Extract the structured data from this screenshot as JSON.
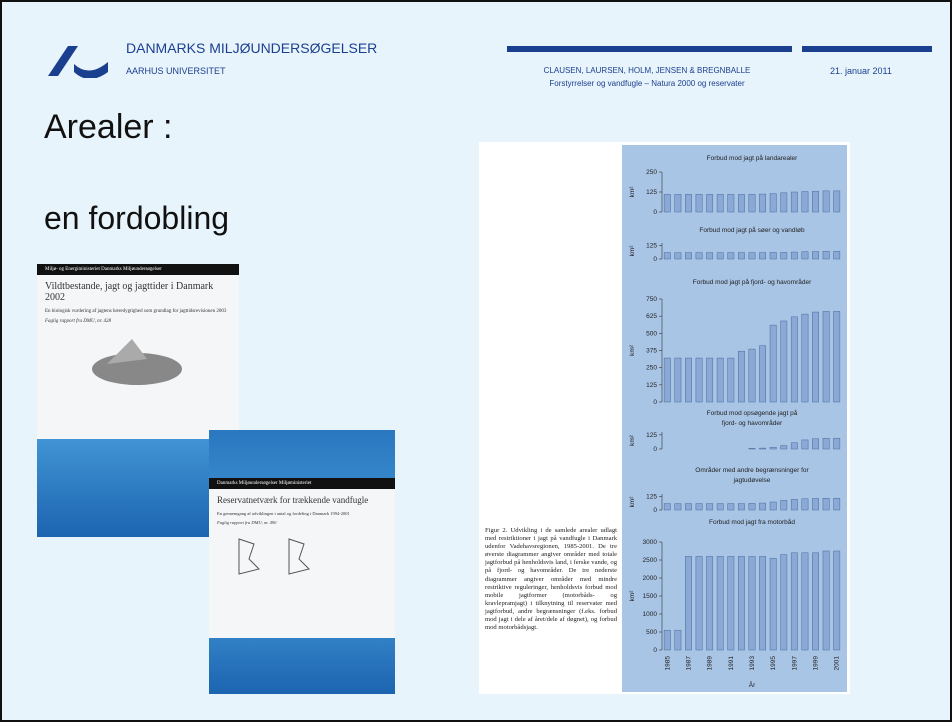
{
  "header": {
    "org": "DANMARKS MILJØUNDERSØGELSER",
    "university": "AARHUS UNIVERSITET",
    "authors": "CLAUSEN, LAURSEN, HOLM, JENSEN & BREGNBALLE",
    "subtitle": "Forstyrrelser og vandfugle – Natura 2000 og reservater",
    "date": "21. januar 2011"
  },
  "slide": {
    "title": "Arealer :",
    "subtitle": "en fordobling"
  },
  "covers": [
    {
      "publisher": "Miljø- og Energiministeriet Danmarks Miljøundersøgelser",
      "title": "Vildtbestande, jagt og jagttider i Danmark 2002",
      "description": "En biologisk vurdering af jagtens bæredygtighed som grundlag for jagttidsrevisionen 2003",
      "series": "Faglig rapport fra DMU, nr. 428"
    },
    {
      "publisher": "Danmarks Miljøundersøgelser Miljøministeriet",
      "title": "Reservatnetværk for trækkende vandfugle",
      "description": "En gennemgang af udviklingen i antal og fordeling i Danmark 1994-2001",
      "series": "Faglig rapport fra DMU, nr. 490"
    }
  ],
  "figure": {
    "caption": "Figur 2. Udvikling i de samlede arealer udlagt med restriktioner i jagt på vandfugle i Danmark udenfor Vadehavsregionen, 1985-2001. De tre øverste diagrammer angiver områder med totale jagtforbud på henholdsvis land, i ferske vande, og på fjord- og havområder. De tre nederste diagrammer angiver områder med mindre restriktive reguleringer, henholdsvis forbud mod mobile jagtformer (motorbåds- og kravlepramjagt) i tilknytning til reservater med jagtforbud, andre begrænsninger (f.eks. forbud mod jagt i dele af året/dele af døgnet), og forbud mod motorbådsjagt."
  },
  "chart_data": [
    {
      "type": "bar",
      "title": [
        "Forbud mod jagt på landarealer"
      ],
      "y_label": "km²",
      "color": "#8aa9d6",
      "categories": [
        "1985",
        null,
        "1987",
        null,
        "1989",
        null,
        "1991",
        null,
        "1993",
        null,
        "1995",
        null,
        "1997",
        null,
        "1999",
        null,
        "2001"
      ],
      "values": [
        110,
        110,
        110,
        110,
        110,
        110,
        110,
        110,
        110,
        112,
        115,
        120,
        125,
        128,
        130,
        132,
        132
      ],
      "ylim": [
        0,
        250
      ],
      "yticks": [
        0,
        125,
        250
      ]
    },
    {
      "type": "bar",
      "title": [
        "Forbud mod jagt på søer og vandløb"
      ],
      "y_label": "km²",
      "color": "#8aa9d6",
      "categories": [
        "1985",
        null,
        "1987",
        null,
        "1989",
        null,
        "1991",
        null,
        "1993",
        null,
        "1995",
        null,
        "1997",
        null,
        "1999",
        null,
        "2001"
      ],
      "values": [
        60,
        60,
        60,
        60,
        60,
        60,
        60,
        60,
        60,
        60,
        62,
        62,
        65,
        68,
        70,
        72,
        72
      ],
      "ylim": [
        0,
        150
      ],
      "yticks": [
        0,
        125
      ]
    },
    {
      "type": "bar",
      "title": [
        "Forbud mod jagt på fjord- og havområder"
      ],
      "y_label": "km²",
      "color": "#8aa9d6",
      "categories": [
        "1985",
        null,
        "1987",
        null,
        "1989",
        null,
        "1991",
        null,
        "1993",
        null,
        "1995",
        null,
        "1997",
        null,
        "1999",
        null,
        "2001"
      ],
      "values": [
        320,
        320,
        320,
        320,
        320,
        320,
        320,
        370,
        385,
        410,
        560,
        590,
        620,
        640,
        655,
        660,
        660
      ],
      "ylim": [
        0,
        750
      ],
      "yticks": [
        0,
        125,
        250,
        375,
        500,
        625,
        750
      ]
    },
    {
      "type": "bar",
      "title": [
        "Forbud mod opsøgende jagt på",
        "fjord- og havområder"
      ],
      "y_label": "km²",
      "color": "#8aa9d6",
      "categories": [
        "1985",
        null,
        "1987",
        null,
        "1989",
        null,
        "1991",
        null,
        "1993",
        null,
        "1995",
        null,
        "1997",
        null,
        "1999",
        null,
        "2001"
      ],
      "values": [
        null,
        null,
        null,
        null,
        null,
        null,
        null,
        null,
        5,
        8,
        15,
        30,
        55,
        80,
        90,
        95,
        95
      ],
      "ylim": [
        0,
        150
      ],
      "yticks": [
        0,
        125
      ]
    },
    {
      "type": "bar",
      "title": [
        "Områder med andre begrænsninger for",
        "jagtudøvelse"
      ],
      "y_label": "km²",
      "color": "#8aa9d6",
      "categories": [
        "1985",
        null,
        "1987",
        null,
        "1989",
        null,
        "1991",
        null,
        "1993",
        null,
        "1995",
        null,
        "1997",
        null,
        "1999",
        null,
        "2001"
      ],
      "values": [
        60,
        60,
        60,
        60,
        60,
        60,
        60,
        60,
        62,
        65,
        75,
        90,
        100,
        105,
        108,
        110,
        110
      ],
      "ylim": [
        0,
        150
      ],
      "yticks": [
        0,
        125
      ]
    },
    {
      "type": "bar",
      "title": [
        "Forbud mod jagt fra motorbåd"
      ],
      "y_label": "km²",
      "x_label": "År",
      "color": "#8aa9d6",
      "categories": [
        "1985",
        null,
        "1987",
        null,
        "1989",
        null,
        "1991",
        null,
        "1993",
        null,
        "1995",
        null,
        "1997",
        null,
        "1999",
        null,
        "2001"
      ],
      "values": [
        550,
        550,
        2600,
        2600,
        2600,
        2600,
        2600,
        2600,
        2600,
        2600,
        2550,
        2650,
        2700,
        2700,
        2700,
        2750,
        2750
      ],
      "ylim": [
        0,
        3000
      ],
      "yticks": [
        0,
        500,
        1000,
        1500,
        2000,
        2500,
        3000
      ]
    }
  ]
}
